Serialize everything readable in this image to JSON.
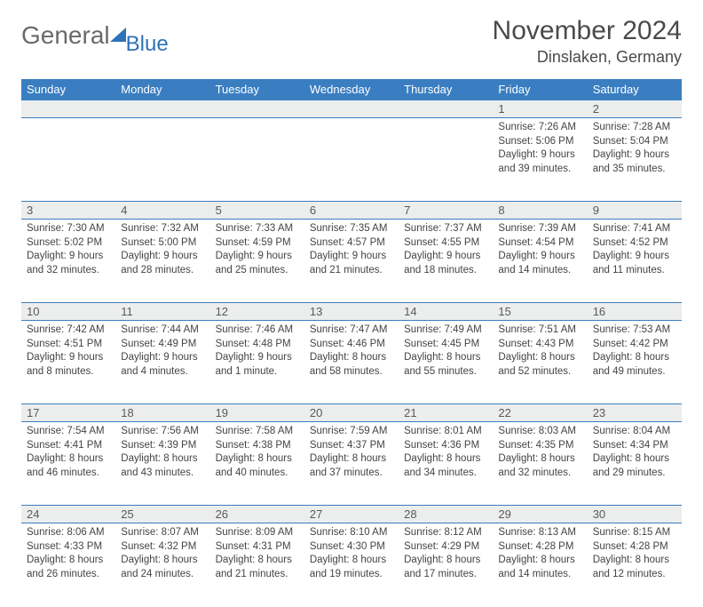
{
  "brand": {
    "part1": "General",
    "part2": "Blue"
  },
  "title": "November 2024",
  "location": "Dinslaken, Germany",
  "colors": {
    "header_bg": "#3a7ec1",
    "daynum_bg": "#eceded",
    "brand_blue": "#2f71b8",
    "text": "#4a4a4a"
  },
  "weekdays": [
    "Sunday",
    "Monday",
    "Tuesday",
    "Wednesday",
    "Thursday",
    "Friday",
    "Saturday"
  ],
  "weeks": [
    [
      null,
      null,
      null,
      null,
      null,
      {
        "day": 1,
        "sunrise": "7:26 AM",
        "sunset": "5:06 PM",
        "daylight": "9 hours and 39 minutes."
      },
      {
        "day": 2,
        "sunrise": "7:28 AM",
        "sunset": "5:04 PM",
        "daylight": "9 hours and 35 minutes."
      }
    ],
    [
      {
        "day": 3,
        "sunrise": "7:30 AM",
        "sunset": "5:02 PM",
        "daylight": "9 hours and 32 minutes."
      },
      {
        "day": 4,
        "sunrise": "7:32 AM",
        "sunset": "5:00 PM",
        "daylight": "9 hours and 28 minutes."
      },
      {
        "day": 5,
        "sunrise": "7:33 AM",
        "sunset": "4:59 PM",
        "daylight": "9 hours and 25 minutes."
      },
      {
        "day": 6,
        "sunrise": "7:35 AM",
        "sunset": "4:57 PM",
        "daylight": "9 hours and 21 minutes."
      },
      {
        "day": 7,
        "sunrise": "7:37 AM",
        "sunset": "4:55 PM",
        "daylight": "9 hours and 18 minutes."
      },
      {
        "day": 8,
        "sunrise": "7:39 AM",
        "sunset": "4:54 PM",
        "daylight": "9 hours and 14 minutes."
      },
      {
        "day": 9,
        "sunrise": "7:41 AM",
        "sunset": "4:52 PM",
        "daylight": "9 hours and 11 minutes."
      }
    ],
    [
      {
        "day": 10,
        "sunrise": "7:42 AM",
        "sunset": "4:51 PM",
        "daylight": "9 hours and 8 minutes."
      },
      {
        "day": 11,
        "sunrise": "7:44 AM",
        "sunset": "4:49 PM",
        "daylight": "9 hours and 4 minutes."
      },
      {
        "day": 12,
        "sunrise": "7:46 AM",
        "sunset": "4:48 PM",
        "daylight": "9 hours and 1 minute."
      },
      {
        "day": 13,
        "sunrise": "7:47 AM",
        "sunset": "4:46 PM",
        "daylight": "8 hours and 58 minutes."
      },
      {
        "day": 14,
        "sunrise": "7:49 AM",
        "sunset": "4:45 PM",
        "daylight": "8 hours and 55 minutes."
      },
      {
        "day": 15,
        "sunrise": "7:51 AM",
        "sunset": "4:43 PM",
        "daylight": "8 hours and 52 minutes."
      },
      {
        "day": 16,
        "sunrise": "7:53 AM",
        "sunset": "4:42 PM",
        "daylight": "8 hours and 49 minutes."
      }
    ],
    [
      {
        "day": 17,
        "sunrise": "7:54 AM",
        "sunset": "4:41 PM",
        "daylight": "8 hours and 46 minutes."
      },
      {
        "day": 18,
        "sunrise": "7:56 AM",
        "sunset": "4:39 PM",
        "daylight": "8 hours and 43 minutes."
      },
      {
        "day": 19,
        "sunrise": "7:58 AM",
        "sunset": "4:38 PM",
        "daylight": "8 hours and 40 minutes."
      },
      {
        "day": 20,
        "sunrise": "7:59 AM",
        "sunset": "4:37 PM",
        "daylight": "8 hours and 37 minutes."
      },
      {
        "day": 21,
        "sunrise": "8:01 AM",
        "sunset": "4:36 PM",
        "daylight": "8 hours and 34 minutes."
      },
      {
        "day": 22,
        "sunrise": "8:03 AM",
        "sunset": "4:35 PM",
        "daylight": "8 hours and 32 minutes."
      },
      {
        "day": 23,
        "sunrise": "8:04 AM",
        "sunset": "4:34 PM",
        "daylight": "8 hours and 29 minutes."
      }
    ],
    [
      {
        "day": 24,
        "sunrise": "8:06 AM",
        "sunset": "4:33 PM",
        "daylight": "8 hours and 26 minutes."
      },
      {
        "day": 25,
        "sunrise": "8:07 AM",
        "sunset": "4:32 PM",
        "daylight": "8 hours and 24 minutes."
      },
      {
        "day": 26,
        "sunrise": "8:09 AM",
        "sunset": "4:31 PM",
        "daylight": "8 hours and 21 minutes."
      },
      {
        "day": 27,
        "sunrise": "8:10 AM",
        "sunset": "4:30 PM",
        "daylight": "8 hours and 19 minutes."
      },
      {
        "day": 28,
        "sunrise": "8:12 AM",
        "sunset": "4:29 PM",
        "daylight": "8 hours and 17 minutes."
      },
      {
        "day": 29,
        "sunrise": "8:13 AM",
        "sunset": "4:28 PM",
        "daylight": "8 hours and 14 minutes."
      },
      {
        "day": 30,
        "sunrise": "8:15 AM",
        "sunset": "4:28 PM",
        "daylight": "8 hours and 12 minutes."
      }
    ]
  ],
  "labels": {
    "sunrise": "Sunrise:",
    "sunset": "Sunset:",
    "daylight": "Daylight:"
  }
}
